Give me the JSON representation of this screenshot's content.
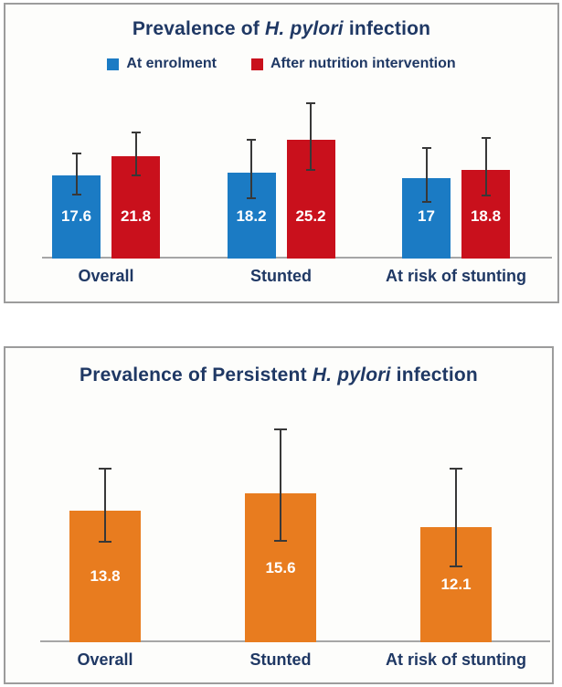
{
  "style": {
    "text_color": "#1F3864",
    "axis_color": "#A6A6A6",
    "error_bar_color": "#383838",
    "panel_border_color": "#9C9C9C",
    "panel_background": "#FDFDFB",
    "value_label_color": "#FFFFFF"
  },
  "chart_data": [
    {
      "type": "bar",
      "title": "Prevalence of H. pylori infection",
      "title_parts": {
        "pre": "Prevalence of ",
        "italic": "H. pylori",
        "post": " infection"
      },
      "categories": [
        "Overall",
        "Stunted",
        "At risk of stunting"
      ],
      "legend_position": "top",
      "grid": false,
      "xlabel": "",
      "ylabel": "",
      "ylim": [
        0,
        35
      ],
      "series": [
        {
          "name": "At enrolment",
          "color": "#1B7BC4",
          "values": [
            17.6,
            18.2,
            17
          ],
          "labels": [
            "17.6",
            "18.2",
            "17"
          ],
          "ci_low": [
            13.6,
            12.8,
            12.0
          ],
          "ci_high": [
            22.3,
            25.2,
            23.5
          ]
        },
        {
          "name": "After nutrition intervention",
          "color": "#C9101C",
          "values": [
            21.8,
            25.2,
            18.8
          ],
          "labels": [
            "21.8",
            "25.2",
            "18.8"
          ],
          "ci_low": [
            17.7,
            18.8,
            13.4
          ],
          "ci_high": [
            26.8,
            33.0,
            25.6
          ]
        }
      ]
    },
    {
      "type": "bar",
      "title": "Prevalence of Persistent H. pylori infection",
      "title_parts": {
        "pre": "Prevalence of Persistent ",
        "italic": "H. pylori",
        "post": " infection"
      },
      "categories": [
        "Overall",
        "Stunted",
        "At risk of stunting"
      ],
      "legend_position": "none",
      "grid": false,
      "xlabel": "",
      "ylabel": "",
      "ylim": [
        0,
        25
      ],
      "series": [
        {
          "color": "#E87C1F",
          "values": [
            13.8,
            15.6,
            12.1
          ],
          "labels": [
            "13.8",
            "15.6",
            "12.1"
          ],
          "ci_low": [
            10.5,
            10.6,
            8.0
          ],
          "ci_high": [
            18.2,
            22.3,
            18.2
          ]
        }
      ]
    }
  ]
}
